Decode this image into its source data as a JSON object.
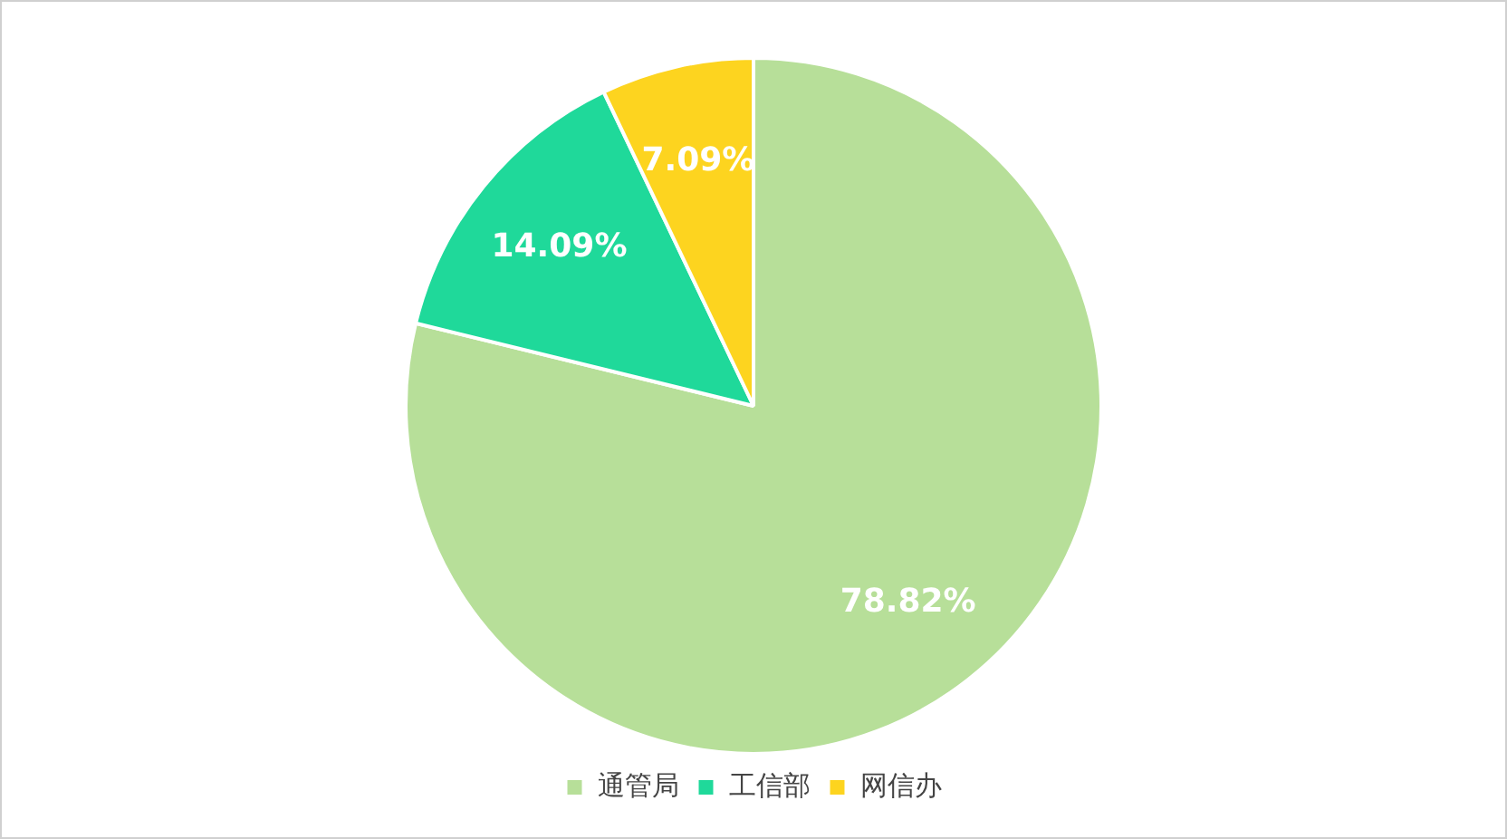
{
  "chart_data": {
    "type": "pie",
    "categories": [
      "通管局",
      "工信部",
      "网信办"
    ],
    "values": [
      78.82,
      14.09,
      7.09
    ],
    "colors": [
      "#b7df99",
      "#1fd99a",
      "#fdd41f"
    ],
    "value_labels": [
      "78.82%",
      "14.09%",
      "7.09%"
    ],
    "legend": "bottom"
  }
}
